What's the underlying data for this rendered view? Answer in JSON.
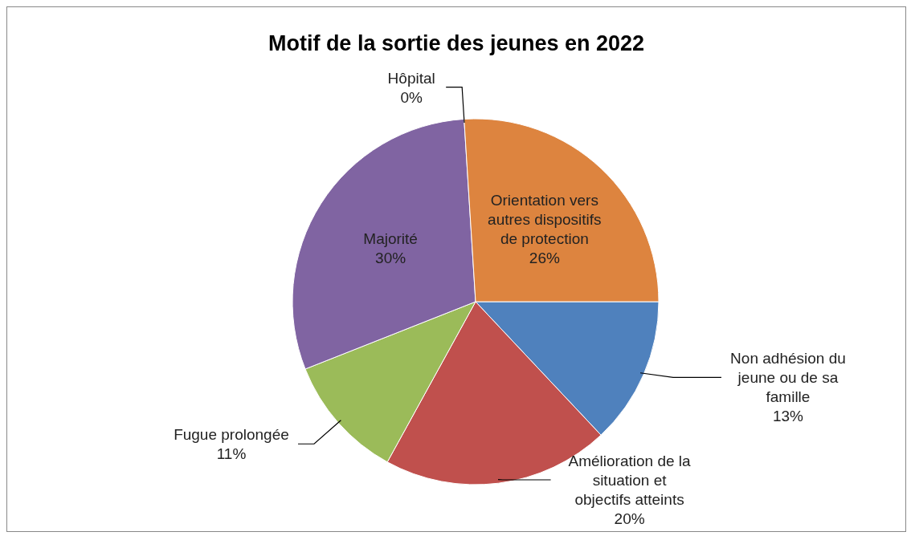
{
  "chart_data": {
    "type": "pie",
    "title": "Motif de la sortie des jeunes en 2022",
    "categories": [
      "Non adhésion du jeune ou de sa famille",
      "Amélioration de la situation et objectifs atteints",
      "Fugue prolongée",
      "Majorité",
      "Hôpital",
      "Orientation vers autres dispositifs de protection"
    ],
    "values": [
      13,
      20,
      11,
      30,
      0,
      26
    ],
    "value_labels": [
      "13%",
      "20%",
      "11%",
      "30%",
      "0%",
      "26%"
    ],
    "colors": [
      "#4f81bd",
      "#c0504d",
      "#9bbb59",
      "#8064a2",
      "#4bacc6",
      "#dd843f"
    ],
    "legend": false
  }
}
